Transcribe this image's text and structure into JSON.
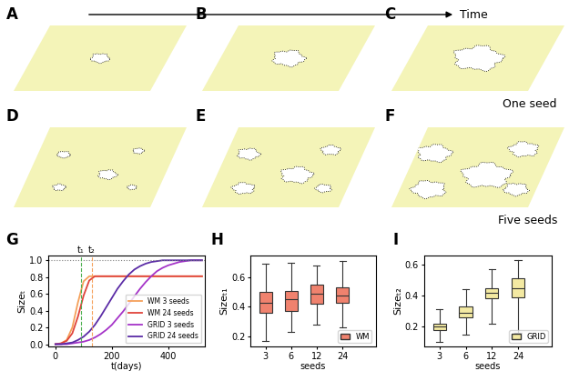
{
  "snapshots": {
    "panels": [
      "A",
      "B",
      "C",
      "D",
      "E",
      "F"
    ],
    "arrow_label": "Time",
    "row_labels": [
      "One seed",
      "Five seeds"
    ]
  },
  "chart_data": [
    {
      "type": "line",
      "panel": "G",
      "x_label": "t(days)",
      "y_label": "Sizeₜ",
      "x": [
        0,
        20,
        40,
        60,
        80,
        100,
        120,
        140,
        160,
        180,
        200,
        220,
        240,
        260,
        280,
        300,
        320,
        340,
        360,
        380,
        400,
        420,
        440,
        460,
        480,
        500,
        520
      ],
      "series": [
        {
          "name": "WM 3 seeds",
          "color": "#f5a05a",
          "values": [
            0,
            0.01,
            0.05,
            0.2,
            0.5,
            0.75,
            0.81,
            0.81,
            0.81,
            0.81,
            0.81,
            0.81,
            0.81,
            0.81,
            0.81,
            0.81,
            0.81,
            0.81,
            0.81,
            0.81,
            0.81,
            0.81,
            0.81,
            0.81,
            0.81,
            0.81,
            0.81
          ]
        },
        {
          "name": "WM 24 seeds",
          "color": "#e0433a",
          "values": [
            0,
            0.01,
            0.04,
            0.13,
            0.33,
            0.58,
            0.76,
            0.81,
            0.81,
            0.81,
            0.81,
            0.81,
            0.81,
            0.81,
            0.81,
            0.81,
            0.81,
            0.81,
            0.81,
            0.81,
            0.81,
            0.81,
            0.81,
            0.81,
            0.81,
            0.81,
            0.81
          ]
        },
        {
          "name": "GRID 3 seeds",
          "color": "#a534c8",
          "values": [
            0,
            0,
            0,
            0.01,
            0.02,
            0.03,
            0.05,
            0.08,
            0.12,
            0.17,
            0.23,
            0.31,
            0.39,
            0.48,
            0.57,
            0.66,
            0.74,
            0.81,
            0.87,
            0.91,
            0.94,
            0.96,
            0.98,
            0.99,
            1.0,
            1.0,
            1.0
          ]
        },
        {
          "name": "GRID 24 seeds",
          "color": "#5b2ca6",
          "values": [
            0,
            0,
            0.01,
            0.02,
            0.05,
            0.09,
            0.15,
            0.23,
            0.33,
            0.44,
            0.55,
            0.66,
            0.75,
            0.83,
            0.89,
            0.93,
            0.96,
            0.98,
            0.99,
            1.0,
            1.0,
            1.0,
            1.0,
            1.0,
            1.0,
            1.0,
            1.0
          ]
        }
      ],
      "threshold": 1.0,
      "time_marks": [
        {
          "label": "t₁",
          "x": 90,
          "color": "#4caf50"
        },
        {
          "label": "t₂",
          "x": 130,
          "color": "#f5a05a"
        }
      ],
      "xlim": [
        -25,
        530
      ],
      "xticks": [
        0,
        200,
        400
      ],
      "ylim": [
        -0.03,
        1.06
      ],
      "yticks": [
        {
          "value": 0.0,
          "label": "0.0"
        },
        {
          "value": 0.2,
          "label": "0.2"
        },
        {
          "value": 0.4,
          "label": "0.4"
        },
        {
          "value": 0.6,
          "label": "0.6"
        },
        {
          "value": 0.8,
          "label": "0.8"
        },
        {
          "value": 1.0,
          "label": "1.0"
        }
      ],
      "legend": "lower right"
    },
    {
      "type": "box",
      "panel": "H",
      "x_label": "seeds",
      "y_label": "Sizeₜ₁",
      "name": "WM",
      "color": "#f0826e",
      "categories": [
        "3",
        "6",
        "12",
        "24"
      ],
      "boxes": [
        {
          "min": 0.17,
          "q1": 0.36,
          "median": 0.43,
          "q3": 0.5,
          "max": 0.69
        },
        {
          "min": 0.23,
          "q1": 0.37,
          "median": 0.45,
          "q3": 0.51,
          "max": 0.7
        },
        {
          "min": 0.28,
          "q1": 0.42,
          "median": 0.49,
          "q3": 0.55,
          "max": 0.68
        },
        {
          "min": 0.26,
          "q1": 0.43,
          "median": 0.48,
          "q3": 0.53,
          "max": 0.71
        }
      ],
      "ylim": [
        0.13,
        0.75
      ],
      "yticks": [
        0.2,
        0.4,
        0.6
      ],
      "legend": "lower right"
    },
    {
      "type": "box",
      "panel": "I",
      "x_label": "seeds",
      "y_label": "Sizeₜ₂",
      "name": "GRID",
      "color": "#f3e9a2",
      "categories": [
        "3",
        "6",
        "12",
        "24"
      ],
      "boxes": [
        {
          "min": 0.1,
          "q1": 0.18,
          "median": 0.2,
          "q3": 0.22,
          "max": 0.31
        },
        {
          "min": 0.15,
          "q1": 0.26,
          "median": 0.29,
          "q3": 0.33,
          "max": 0.44
        },
        {
          "min": 0.22,
          "q1": 0.38,
          "median": 0.42,
          "q3": 0.45,
          "max": 0.57
        },
        {
          "min": 0.16,
          "q1": 0.39,
          "median": 0.45,
          "q3": 0.51,
          "max": 0.63
        }
      ],
      "ylim": [
        0.07,
        0.66
      ],
      "yticks": [
        0.2,
        0.4,
        0.6
      ],
      "legend": "lower right"
    }
  ]
}
